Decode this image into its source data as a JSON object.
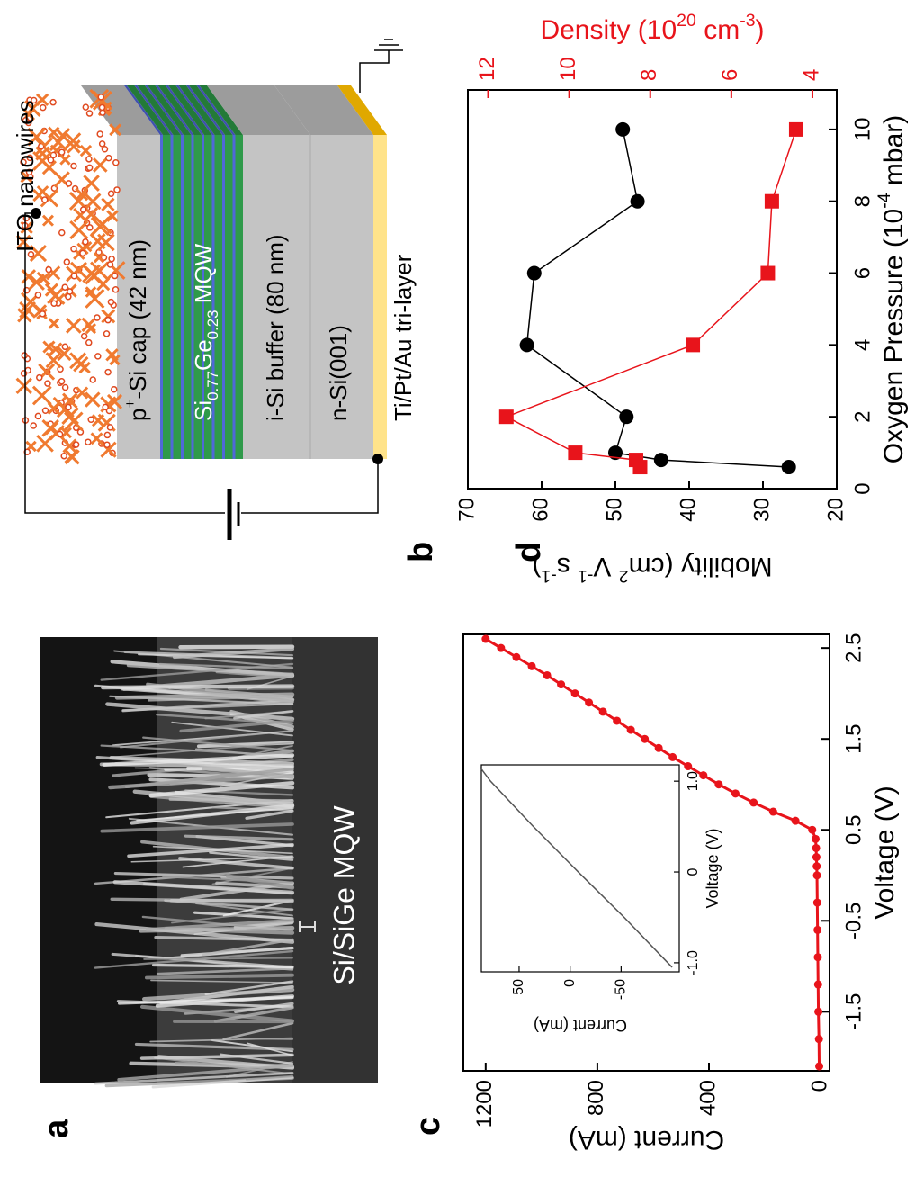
{
  "panel_labels": [
    "a",
    "b",
    "c",
    "d"
  ],
  "panel_a": {
    "caption": "Si/SiGe MQW"
  },
  "panel_b": {
    "labels": {
      "ito": "ITO nanowires",
      "cap": [
        "p",
        "+",
        "-Si cap (42 nm)"
      ],
      "mqw": [
        "Si",
        "0.77",
        "Ge",
        "0.23",
        " MQW"
      ],
      "buffer": "i-Si buffer (80 nm)",
      "substrate": "n-Si(001)",
      "contact": "Ti/Pt/Au tri-layer"
    }
  },
  "chart_data": [
    {
      "type": "line",
      "x_label": "Voltage (V)",
      "y_label": "Current (mA)",
      "color": "#e8141b",
      "marker": "circle",
      "x": [
        -2.1,
        -1.8,
        -1.5,
        -1.2,
        -0.9,
        -0.6,
        -0.3,
        0,
        0.1,
        0.2,
        0.3,
        0.4,
        0.5,
        0.6,
        0.7,
        0.8,
        0.9,
        1.0,
        1.1,
        1.2,
        1.3,
        1.4,
        1.5,
        1.6,
        1.7,
        1.8,
        1.9,
        2.0,
        2.1,
        2.2,
        2.3,
        2.4,
        2.5,
        2.6
      ],
      "values": [
        5,
        6,
        8,
        9,
        10,
        11,
        12,
        13,
        14,
        15,
        16,
        18,
        30,
        90,
        170,
        240,
        305,
        365,
        420,
        475,
        530,
        580,
        630,
        680,
        730,
        780,
        830,
        880,
        930,
        980,
        1035,
        1090,
        1145,
        1200
      ],
      "xlim": [
        -2.15,
        2.65
      ],
      "ylim": [
        -32,
        1280
      ],
      "xticks": [
        -1.5,
        -0.5,
        0.5,
        1.5,
        2.5
      ],
      "yticks": [
        0,
        400,
        800,
        1200
      ]
    },
    {
      "type": "line",
      "x_label": "Voltage (V)",
      "y_label": "Current (mA)",
      "color": "#555555",
      "x": [
        -1.05,
        -0.5,
        0,
        0.5,
        1.0,
        1.15
      ],
      "values": [
        -100,
        -53,
        -8,
        36,
        78,
        88
      ],
      "xlim": [
        -1.1,
        1.18
      ],
      "ylim": [
        -107,
        87
      ],
      "xticks": [
        {
          "value": -1.0,
          "label": "-1.0"
        },
        0,
        {
          "value": 1.0,
          "label": "1.0"
        }
      ],
      "yticks": [
        -50,
        0,
        50
      ]
    },
    {
      "type": "line",
      "x_label": [
        "Oxygen Pressure (10",
        "-4",
        " mbar)"
      ],
      "y_label": [
        "Mobility (cm",
        "2",
        " V",
        "-1",
        " s",
        "-1",
        ")"
      ],
      "y2_label": [
        "Density (10",
        "20",
        " cm",
        "-3",
        ")"
      ],
      "x": [
        0.6,
        0.8,
        1,
        2,
        4,
        6,
        8,
        10
      ],
      "series": [
        {
          "color": "#000000",
          "marker": "circle",
          "values": [
            26.5,
            43.8,
            50,
            48.5,
            62,
            61,
            47,
            49
          ]
        },
        {
          "color": "#e8141b",
          "marker": "square",
          "axis": "y2",
          "values": [
            8.25,
            8.35,
            9.85,
            11.55,
            6.95,
            5.1,
            5.0,
            4.4
          ]
        }
      ],
      "xlim": [
        0,
        11.1
      ],
      "ylim": [
        20,
        70
      ],
      "y2lim": [
        3.4,
        12.5
      ],
      "xticks": [
        0,
        2,
        4,
        6,
        8,
        10
      ],
      "yticks": [
        20,
        30,
        40,
        50,
        60,
        70
      ],
      "y2ticks": [
        4,
        6,
        8,
        10,
        12
      ]
    }
  ]
}
